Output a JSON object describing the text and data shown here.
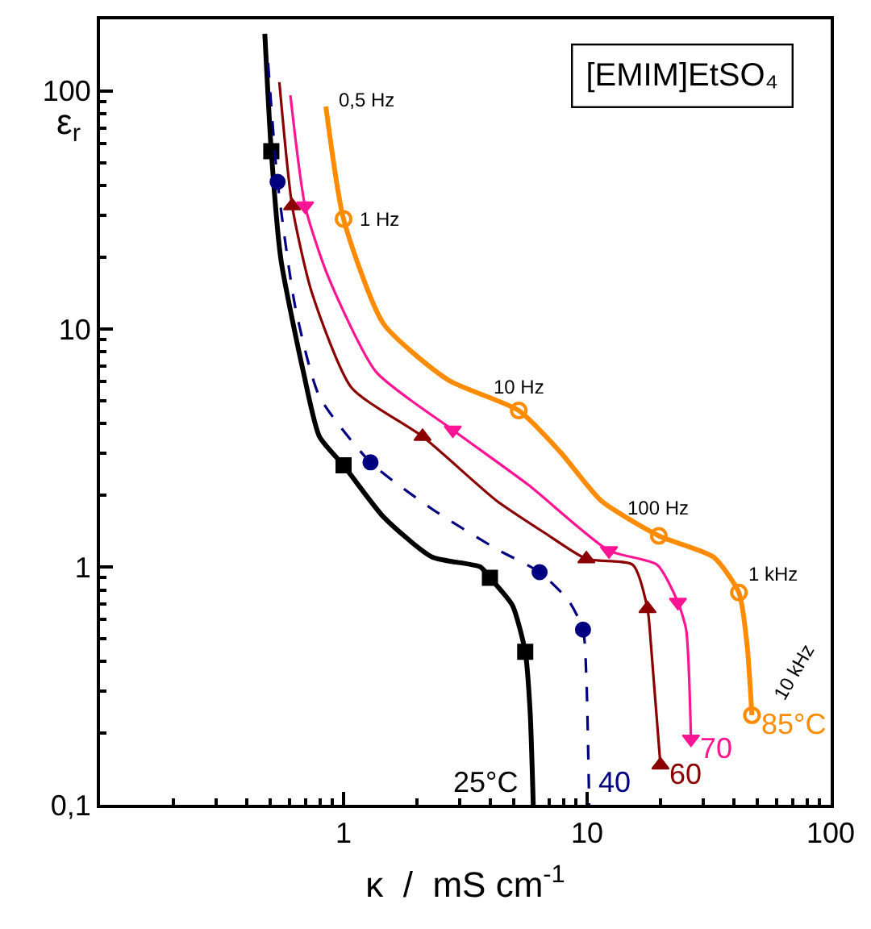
{
  "chart_data": {
    "type": "line",
    "title": "[EMIM]EtSO₄",
    "xlabel": "κ  /  mS cm$^{-1}$",
    "ylabel": "ε$_{r}$",
    "log": "xy",
    "xlim": [
      0.1,
      100
    ],
    "xticks": [
      1,
      10,
      100
    ],
    "ylim": [
      0.1,
      200
    ],
    "yticks": [
      {
        "value": 0.1,
        "label": "0,1"
      },
      1,
      10,
      100
    ],
    "series": [
      {
        "name": "25°C",
        "color": "#000000",
        "line_style": "solid",
        "x": [
          0.475,
          0.505,
          0.553,
          0.684,
          0.796,
          1.0,
          1.46,
          2.31,
          3.64,
          3.99,
          4.93,
          5.57,
          5.83,
          6.01
        ],
        "values": [
          174,
          55.8,
          19.6,
          6.6,
          3.53,
          2.67,
          1.62,
          1.1,
          1.0,
          0.9,
          0.69,
          0.44,
          0.25,
          0.1
        ]
      },
      {
        "type": "scatter",
        "color": "#000000",
        "marker": "square",
        "x": [
          0.505,
          1.0,
          3.99,
          5.57
        ],
        "values": [
          55.8,
          2.67,
          0.9,
          0.44
        ]
      },
      {
        "name": "40",
        "color": "#000080",
        "line_style": "dashed",
        "x": [
          0.49,
          0.536,
          0.634,
          0.796,
          1.29,
          2.31,
          4.24,
          6.38,
          8.4,
          9.62,
          9.93,
          10.2
        ],
        "values": [
          131,
          41.5,
          12.3,
          5.2,
          2.75,
          1.75,
          1.19,
          0.95,
          0.72,
          0.545,
          0.34,
          0.1
        ]
      },
      {
        "type": "scatter",
        "color": "#000080",
        "marker": "circle",
        "x": [
          0.536,
          1.29,
          6.38,
          9.62
        ],
        "values": [
          41.5,
          2.75,
          0.95,
          0.545
        ]
      },
      {
        "name": "60",
        "color": "#8b0000",
        "line_style": "solid",
        "x": [
          0.545,
          0.615,
          0.738,
          1.08,
          2.11,
          4.24,
          6.69,
          9.93,
          15.4,
          17.7,
          18.3,
          20
        ],
        "values": [
          109,
          32.9,
          14.4,
          5.65,
          3.53,
          1.9,
          1.39,
          1.08,
          1.02,
          0.667,
          0.466,
          0.147
        ]
      },
      {
        "type": "scatter",
        "color": "#8b0000",
        "marker": "triangle",
        "x": [
          0.615,
          2.11,
          9.93,
          17.7,
          20
        ],
        "values": [
          32.9,
          3.53,
          1.08,
          0.667,
          0.147
        ]
      },
      {
        "name": "70",
        "color": "#ff1493",
        "line_style": "solid",
        "x": [
          0.605,
          0.695,
          0.86,
          1.36,
          2.81,
          5.74,
          12.3,
          19.4,
          23.6,
          25.5,
          26.7
        ],
        "values": [
          96,
          32.9,
          16.8,
          6.6,
          3.76,
          2.21,
          1.17,
          1.02,
          0.71,
          0.545,
          0.189
        ]
      },
      {
        "type": "scatter",
        "color": "#ff1493",
        "marker": "triangle-down",
        "x": [
          0.695,
          2.81,
          12.3,
          23.6,
          26.7
        ],
        "values": [
          32.9,
          3.76,
          1.17,
          0.71,
          0.189
        ]
      },
      {
        "name": "85°C",
        "color": "#ff8c00",
        "line_style": "solid",
        "x": [
          0.846,
          1.0,
          1.46,
          2.69,
          5.24,
          7.78,
          11.4,
          19.7,
          33,
          42,
          45.4,
          47.5
        ],
        "values": [
          86,
          29,
          10.5,
          6.1,
          4.54,
          3.03,
          1.9,
          1.35,
          1.1,
          0.78,
          0.466,
          0.238
        ]
      },
      {
        "type": "scatter",
        "color": "#ff8c00",
        "marker": "circle-open",
        "x": [
          1.0,
          5.24,
          19.7,
          42,
          47.5
        ],
        "values": [
          29,
          4.54,
          1.35,
          0.78,
          0.238
        ]
      }
    ],
    "annotations": [
      {
        "text": "0,5 Hz",
        "x": 0.846,
        "y": 86
      },
      {
        "text": "1 Hz",
        "x": 1.0,
        "y": 29
      },
      {
        "text": "10 Hz",
        "x": 5.24,
        "y": 4.54
      },
      {
        "text": "100 Hz",
        "x": 19.7,
        "y": 1.35
      },
      {
        "text": "1 kHz",
        "x": 42,
        "y": 0.78
      },
      {
        "text": "10 kHz",
        "x": 47.5,
        "y": 0.238
      }
    ]
  }
}
